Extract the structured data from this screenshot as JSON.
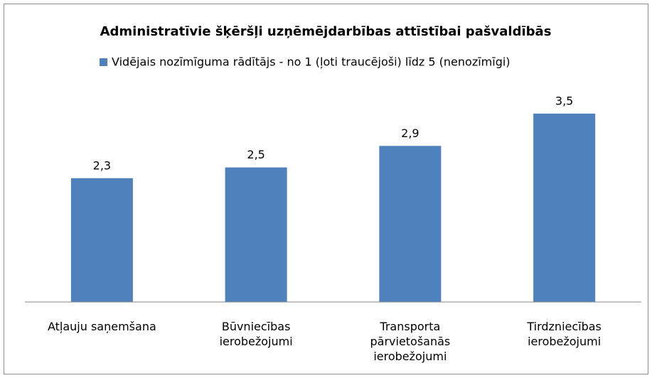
{
  "chart_data": {
    "type": "bar",
    "title": "Administratīvie šķēršļi uzņēmējdarbības attīstībai pašvaldībās",
    "categories": [
      "Atļauju saņemšana",
      "Būvniecības ierobežojumi",
      "Transporta pārvietošanās ierobežojumi",
      "Tirdzniecības ierobežojumi"
    ],
    "series": [
      {
        "name": "Vidējais nozīmīguma rādītājs - no 1 (ļoti traucējoši) līdz 5 (nenozīmīgi)",
        "color": "#4f81bd",
        "values": [
          2.3,
          2.5,
          2.9,
          3.5
        ],
        "value_labels": [
          "2,3",
          "2,5",
          "2,9",
          "3,5"
        ]
      }
    ],
    "ylim": [
      0,
      4
    ],
    "grid": false,
    "legend": "top"
  }
}
